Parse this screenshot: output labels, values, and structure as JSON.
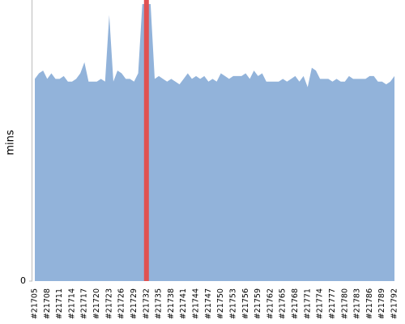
{
  "chart_data": {
    "type": "area",
    "y_label": "mins",
    "categories": [
      "#21705",
      null,
      null,
      "#21708",
      null,
      null,
      "#21711",
      null,
      null,
      "#21714",
      null,
      null,
      "#21717",
      null,
      null,
      "#21720",
      null,
      null,
      "#21723",
      null,
      null,
      "#21726",
      null,
      null,
      "#21729",
      null,
      null,
      "#21732",
      null,
      null,
      "#21735",
      null,
      null,
      "#21738",
      null,
      null,
      "#21741",
      null,
      null,
      "#21744",
      null,
      null,
      "#21747",
      null,
      null,
      "#21750",
      null,
      null,
      "#21753",
      null,
      null,
      "#21756",
      null,
      null,
      "#21759",
      null,
      null,
      "#21762",
      null,
      null,
      "#21765",
      null,
      null,
      "#21768",
      null,
      null,
      "#21771",
      null,
      null,
      "#21774",
      null,
      null,
      "#21777",
      null,
      null,
      "#21780",
      null,
      null,
      "#21783",
      null,
      null,
      "#21786",
      null,
      null,
      "#21789",
      null,
      null,
      "#21792"
    ],
    "values": [
      73,
      75,
      76,
      73,
      75,
      73,
      73,
      74,
      72,
      72,
      73,
      75,
      79,
      72,
      72,
      72,
      73,
      72,
      96,
      72,
      76,
      75,
      73,
      73,
      72,
      75,
      100,
      100,
      100,
      73,
      74,
      73,
      72,
      73,
      72,
      71,
      73,
      75,
      73,
      74,
      73,
      74,
      72,
      73,
      72,
      75,
      74,
      73,
      74,
      74,
      74,
      75,
      73,
      76,
      74,
      75,
      72,
      72,
      72,
      72,
      73,
      72,
      73,
      74,
      72,
      74,
      70,
      77,
      76,
      73,
      73,
      73,
      72,
      73,
      72,
      72,
      74,
      73,
      73,
      73,
      73,
      74,
      74,
      72,
      72,
      71,
      72,
      74
    ],
    "color": "#92b3da",
    "highlight_category": "#21732",
    "highlight_color": "#e05252",
    "ylim": [
      0,
      100
    ],
    "yticks": [
      0
    ]
  }
}
